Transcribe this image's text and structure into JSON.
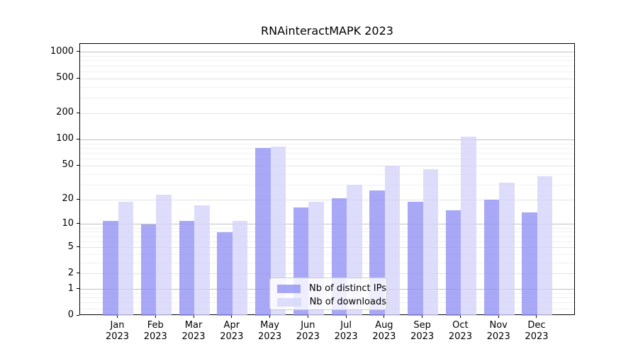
{
  "title": "RNAinteractMAPK 2023",
  "chart_data": {
    "type": "bar",
    "title": "RNAinteractMAPK 2023",
    "categories": [
      "Jan 2023",
      "Feb 2023",
      "Mar 2023",
      "Apr 2023",
      "May 2023",
      "Jun 2023",
      "Jul 2023",
      "Aug 2023",
      "Sep 2023",
      "Oct 2023",
      "Nov 2023",
      "Dec 2023"
    ],
    "series": [
      {
        "name": "Nb of distinct IPs",
        "color": "#9292f4",
        "alpha": 0.8,
        "values": [
          11,
          10,
          11,
          8,
          80,
          16,
          21,
          26,
          19,
          15,
          20,
          14
        ]
      },
      {
        "name": "Nb of downloads",
        "color": "#d5d5fa",
        "alpha": 0.8,
        "values": [
          19,
          23,
          17,
          11,
          84,
          19,
          30,
          50,
          46,
          109,
          32,
          38
        ]
      }
    ],
    "y_axis": {
      "scale": "log1p",
      "ticks": [
        0,
        1,
        2,
        5,
        10,
        20,
        50,
        100,
        200,
        500,
        1000
      ],
      "ylim": [
        0,
        1250
      ]
    },
    "x_axis": {
      "tick_label_format": "month over year, two lines"
    },
    "grid": true,
    "legend_position": "inside lower center"
  }
}
